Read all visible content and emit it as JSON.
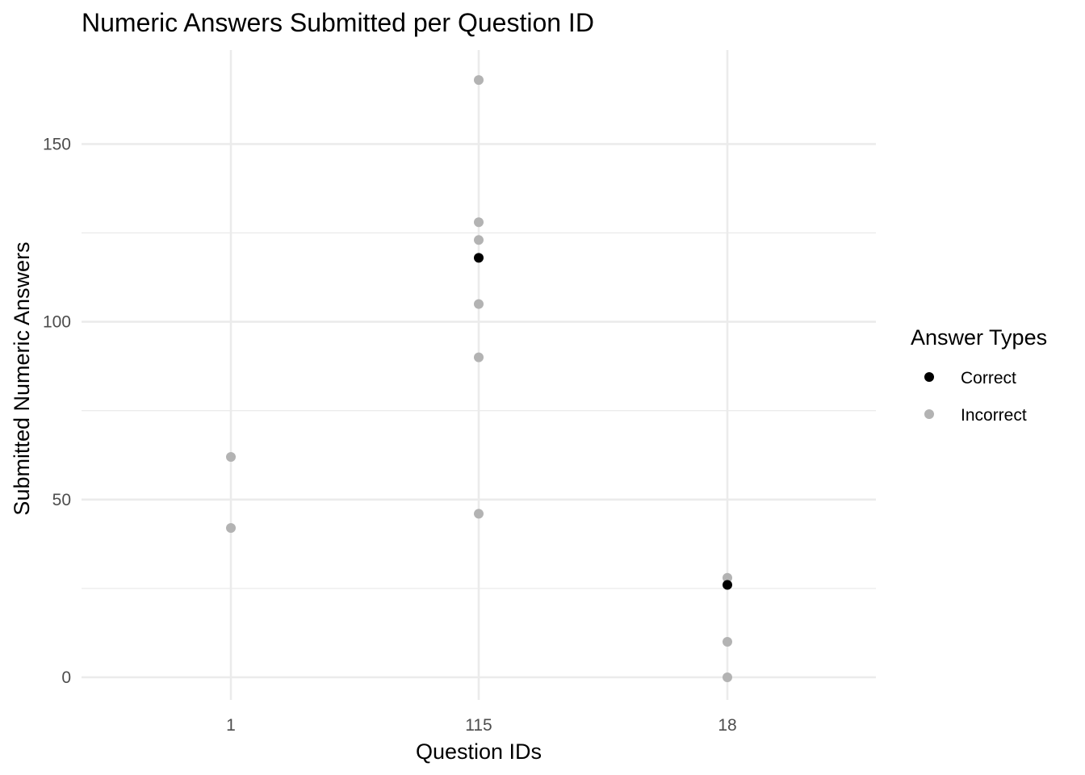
{
  "chart_data": {
    "type": "scatter",
    "title": "Numeric Answers Submitted per Question ID",
    "xlabel": "Question IDs",
    "ylabel": "Submitted Numeric Answers",
    "x_categories": [
      "1",
      "115",
      "18"
    ],
    "y_ticks": [
      0,
      50,
      100,
      150
    ],
    "y_minor_ticks": [
      25,
      75,
      125
    ],
    "ylim": [
      -7,
      175
    ],
    "grid": true,
    "legend": {
      "title": "Answer Types",
      "placement": "right",
      "entries": [
        {
          "label": "Correct",
          "color": "#000000"
        },
        {
          "label": "Incorrect",
          "color": "#b3b3b3"
        }
      ]
    },
    "series": [
      {
        "name": "Incorrect",
        "color": "#b3b3b3",
        "points": [
          {
            "x": "1",
            "y": 62
          },
          {
            "x": "1",
            "y": 42
          },
          {
            "x": "115",
            "y": 168
          },
          {
            "x": "115",
            "y": 128
          },
          {
            "x": "115",
            "y": 123
          },
          {
            "x": "115",
            "y": 105
          },
          {
            "x": "115",
            "y": 90
          },
          {
            "x": "115",
            "y": 46
          },
          {
            "x": "18",
            "y": 28
          },
          {
            "x": "18",
            "y": 10
          },
          {
            "x": "18",
            "y": 0
          }
        ]
      },
      {
        "name": "Correct",
        "color": "#000000",
        "points": [
          {
            "x": "115",
            "y": 118
          },
          {
            "x": "18",
            "y": 26
          }
        ]
      }
    ]
  }
}
